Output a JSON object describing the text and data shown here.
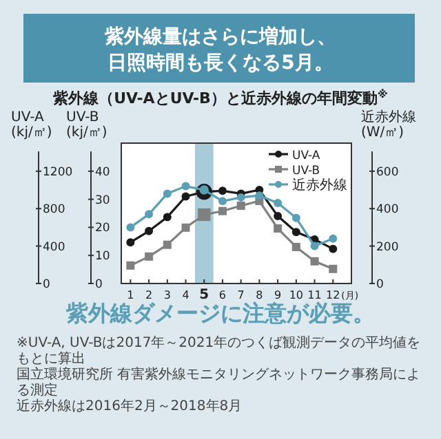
{
  "chart_data": {
    "type": "line",
    "title": "紫外線量はさらに増加し、日照時間も長くなる5月。",
    "subtitle": "紫外線（UV-AとUV-B）と近赤外線の年間変動$^{※}$",
    "x": [
      1,
      2,
      3,
      4,
      5,
      6,
      7,
      8,
      9,
      10,
      11,
      12
    ],
    "xlim": [
      0.5,
      13
    ],
    "xticks": [
      1,
      2,
      3,
      4,
      5,
      6,
      7,
      8,
      9,
      10,
      11,
      12
    ],
    "xlabel": "(月)",
    "ylabel": "UV-B\n(kj/㎡)",
    "ylim": [
      0,
      50
    ],
    "yticks": [
      0,
      10,
      20,
      30,
      40
    ],
    "y2label": "UV-A\n(kj/㎡)",
    "y2lim": [
      0,
      1500
    ],
    "y2ticks": [
      0,
      400,
      800,
      1200
    ],
    "y3label": "近赤外線\n(W/㎡)",
    "y3lim": [
      0,
      750
    ],
    "y3ticks": [
      0,
      200,
      400,
      600
    ],
    "series": [
      {
        "name": "UV-A",
        "color": "#1a1a1a",
        "axis": "y2",
        "marker": "circle",
        "values": [
          440,
          560,
          710,
          930,
          980,
          990,
          960,
          1000,
          720,
          550,
          470,
          370
        ]
      },
      {
        "name": "UV-B",
        "color": "#808080",
        "axis": "y",
        "marker": "square",
        "values": [
          6.4,
          9.6,
          13.8,
          19.9,
          24.5,
          25.8,
          27.7,
          29.4,
          19.6,
          13,
          7.9,
          5.2
        ]
      },
      {
        "name": "近赤外線",
        "color": "#5a9fb5",
        "axis": "y3",
        "marker": "circle",
        "values": [
          300,
          370,
          480,
          520,
          500,
          440,
          460,
          470,
          430,
          350,
          200,
          240
        ]
      }
    ],
    "bands": [
      {
        "axis": "x",
        "from": 4.5,
        "to": 5.5,
        "color": "#a8cbd9"
      }
    ],
    "legend": "top right",
    "grid": false,
    "line_style": "solid",
    "annotations": [
      "紫外線ダメージに注意が必要。",
      "※UV-A, UV-Bは2017年～2021年のつくば観測データの平均値をもとに算出",
      "国立環境研究所 有害紫外線モニタリングネットワーク事務局による測定",
      "近赤外線は2016年2月～2018年8月"
    ]
  }
}
